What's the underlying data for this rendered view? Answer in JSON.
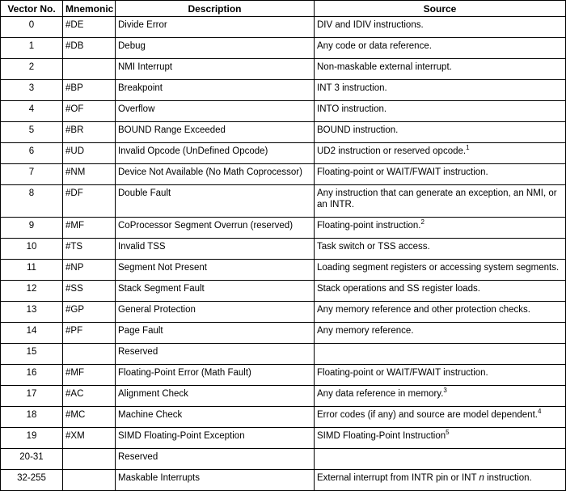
{
  "headers": {
    "vector": "Vector No.",
    "mnemonic": "Mnemonic",
    "description": "Description",
    "source": "Source"
  },
  "rows": [
    {
      "vector": "0",
      "mnemonic": "#DE",
      "description": "Divide Error",
      "source": "DIV and IDIV instructions.",
      "sup": ""
    },
    {
      "vector": "1",
      "mnemonic": "#DB",
      "description": "Debug",
      "source": "Any code or data reference.",
      "sup": ""
    },
    {
      "vector": "2",
      "mnemonic": "",
      "description": "NMI Interrupt",
      "source": "Non-maskable external interrupt.",
      "sup": ""
    },
    {
      "vector": "3",
      "mnemonic": "#BP",
      "description": "Breakpoint",
      "source": "INT 3 instruction.",
      "sup": ""
    },
    {
      "vector": "4",
      "mnemonic": "#OF",
      "description": "Overflow",
      "source": "INTO instruction.",
      "sup": ""
    },
    {
      "vector": "5",
      "mnemonic": "#BR",
      "description": "BOUND Range Exceeded",
      "source": "BOUND instruction.",
      "sup": ""
    },
    {
      "vector": "6",
      "mnemonic": "#UD",
      "description": "Invalid Opcode (UnDefined Opcode)",
      "source": "UD2 instruction or reserved opcode.",
      "sup": "1"
    },
    {
      "vector": "7",
      "mnemonic": "#NM",
      "description": "Device Not Available (No Math Coprocessor)",
      "source": "Floating-point or WAIT/FWAIT instruction.",
      "sup": ""
    },
    {
      "vector": "8",
      "mnemonic": "#DF",
      "description": "Double Fault",
      "source": "Any instruction that can generate an exception, an NMI, or an INTR.",
      "sup": ""
    },
    {
      "vector": "9",
      "mnemonic": "#MF",
      "description": "CoProcessor Segment Overrun (reserved)",
      "source": "Floating-point instruction.",
      "sup": "2"
    },
    {
      "vector": "10",
      "mnemonic": "#TS",
      "description": "Invalid TSS",
      "source": "Task switch or TSS access.",
      "sup": ""
    },
    {
      "vector": "11",
      "mnemonic": "#NP",
      "description": "Segment Not Present",
      "source": "Loading segment registers or accessing system segments.",
      "sup": ""
    },
    {
      "vector": "12",
      "mnemonic": "#SS",
      "description": "Stack Segment Fault",
      "source": "Stack operations and SS register loads.",
      "sup": ""
    },
    {
      "vector": "13",
      "mnemonic": "#GP",
      "description": "General Protection",
      "source": "Any memory reference and other protection checks.",
      "sup": ""
    },
    {
      "vector": "14",
      "mnemonic": "#PF",
      "description": "Page Fault",
      "source": "Any memory reference.",
      "sup": ""
    },
    {
      "vector": "15",
      "mnemonic": "",
      "description": "Reserved",
      "source": "",
      "sup": ""
    },
    {
      "vector": "16",
      "mnemonic": "#MF",
      "description": "Floating-Point Error (Math Fault)",
      "source": "Floating-point or WAIT/FWAIT instruction.",
      "sup": ""
    },
    {
      "vector": "17",
      "mnemonic": "#AC",
      "description": "Alignment Check",
      "source": "Any data reference in memory.",
      "sup": "3"
    },
    {
      "vector": "18",
      "mnemonic": "#MC",
      "description": "Machine Check",
      "source": "Error codes (if any) and source are model dependent.",
      "sup": "4"
    },
    {
      "vector": "19",
      "mnemonic": "#XM",
      "description": "SIMD Floating-Point Exception",
      "source": "SIMD Floating-Point Instruction",
      "sup": "5"
    },
    {
      "vector": "20-31",
      "mnemonic": "",
      "description": "Reserved",
      "source": "",
      "sup": ""
    },
    {
      "vector": "32-255",
      "mnemonic": "",
      "description": "Maskable Interrupts",
      "source": "External interrupt from INTR pin or INT n instruction.",
      "sup": ""
    }
  ]
}
